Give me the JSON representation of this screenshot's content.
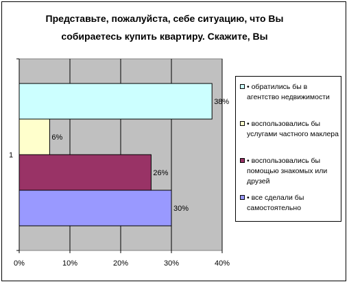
{
  "chart_data": {
    "type": "bar",
    "orientation": "horizontal",
    "title_lines": [
      "Представьте, пожалуйста, себе ситуацию, что Вы",
      "собираетесь купить квартиру. Скажите, Вы"
    ],
    "categories": [
      "1"
    ],
    "series": [
      {
        "name": "• обратились бы в агентство недвижимости",
        "values": [
          38
        ],
        "label": "38%",
        "color": "#CCFFFF"
      },
      {
        "name": "• воспользовались бы услугами частного маклера",
        "values": [
          6
        ],
        "label": "6%",
        "color": "#FFFFCC"
      },
      {
        "name": "• воспользовались бы помощью знакомых или друзей",
        "values": [
          26
        ],
        "label": "26%",
        "color": "#993366"
      },
      {
        "name": "• все сделали бы самостоятельно",
        "values": [
          30
        ],
        "label": "30%",
        "color": "#9999FF"
      }
    ],
    "x_ticks": [
      "0%",
      "10%",
      "20%",
      "30%",
      "40%"
    ],
    "xlim": [
      0,
      40
    ],
    "grid": true,
    "plot_background": "#C0C0C0",
    "legend": "right"
  }
}
